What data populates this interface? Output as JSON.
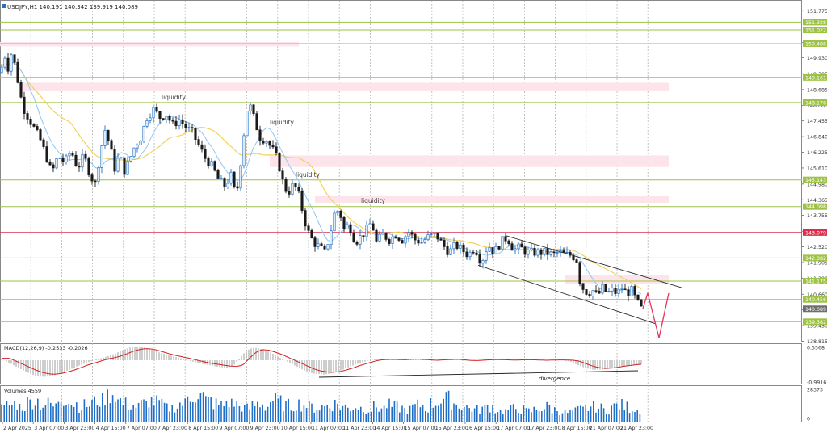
{
  "colors": {
    "bull": "#1f6fc7",
    "bear": "#1a1a1a",
    "level": "#9ec245",
    "red_level": "#d9304d",
    "zone": "#fde4ea",
    "ma_fast": "#8fc6f0",
    "ma_slow": "#f2d25c",
    "grid": "#b5b5b5",
    "macd_signal": "#d02020",
    "macd_hist": "#bdbdbd",
    "volume": "#1f6fc7",
    "forecast": "#e8335c",
    "channel": "#303030"
  },
  "chart_data": [
    {
      "type": "candlestick",
      "title": "USDJPY,H1  140.191 140.342 139.919 140.089",
      "ylim": [
        138.8,
        152.1
      ],
      "y_ticks": [
        "151.775",
        "150.525",
        "149.930",
        "149.305",
        "148.685",
        "148.060",
        "147.455",
        "146.840",
        "146.225",
        "145.610",
        "144.980",
        "144.365",
        "143.755",
        "143.135",
        "142.520",
        "141.905",
        "141.290",
        "140.660",
        "140.050",
        "139.430",
        "138.815"
      ],
      "level_labels": [
        {
          "label": "151.328",
          "color": "green",
          "value": 151.328
        },
        {
          "label": "151.022",
          "color": "green",
          "value": 151.022
        },
        {
          "label": "150.486",
          "color": "green",
          "value": 150.486
        },
        {
          "label": "149.161",
          "color": "green",
          "value": 149.161
        },
        {
          "label": "148.176",
          "color": "green",
          "value": 148.176
        },
        {
          "label": "145.143",
          "color": "green",
          "value": 145.143
        },
        {
          "label": "144.098",
          "color": "green",
          "value": 144.098
        },
        {
          "label": "143.079",
          "color": "red",
          "value": 143.079
        },
        {
          "label": "142.082",
          "color": "green",
          "value": 142.082
        },
        {
          "label": "141.175",
          "color": "green",
          "value": 141.175
        },
        {
          "label": "140.456",
          "color": "green",
          "value": 140.456
        },
        {
          "label": "140.089",
          "color": "gray",
          "value": 140.089
        },
        {
          "label": "139.582",
          "color": "green",
          "value": 139.582
        }
      ],
      "zones": [
        [
          150.55,
          150.38
        ],
        [
          148.95,
          148.62
        ],
        [
          146.1,
          145.65
        ],
        [
          144.5,
          144.25
        ],
        [
          141.4,
          141.05
        ]
      ],
      "x_ticks": [
        "2 Apr 2025",
        "3 Apr 07:00",
        "3 Apr 23:00",
        "4 Apr 15:00",
        "7 Apr 07:00",
        "7 Apr 23:00",
        "8 Apr 15:00",
        "9 Apr 07:00",
        "9 Apr 23:00",
        "10 Apr 15:00",
        "11 Apr 07:00",
        "11 Apr 23:00",
        "14 Apr 15:00",
        "15 Apr 07:00",
        "15 Apr 23:00",
        "16 Apr 15:00",
        "17 Apr 07:00",
        "17 Apr 23:00",
        "18 Apr 15:00",
        "21 Apr 07:00",
        "21 Apr 23:00"
      ],
      "annotations": [
        "liquidity",
        "liquidity",
        "liquidity",
        "liquidity"
      ],
      "close_path": [
        [
          0,
          149.35
        ],
        [
          6,
          150.0
        ],
        [
          10,
          149.55
        ],
        [
          14,
          150.08
        ],
        [
          20,
          149.5
        ],
        [
          24,
          148.6
        ],
        [
          30,
          147.9
        ],
        [
          40,
          147.3
        ],
        [
          50,
          146.7
        ],
        [
          58,
          146.0
        ],
        [
          64,
          145.4
        ],
        [
          72,
          146.1
        ],
        [
          80,
          145.8
        ],
        [
          88,
          146.3
        ],
        [
          96,
          145.6
        ],
        [
          104,
          146.1
        ],
        [
          112,
          145.3
        ],
        [
          118,
          145.0
        ],
        [
          124,
          146.2
        ],
        [
          130,
          147.1
        ],
        [
          136,
          146.5
        ],
        [
          142,
          145.6
        ],
        [
          148,
          146.1
        ],
        [
          154,
          145.5
        ],
        [
          160,
          145.9
        ],
        [
          166,
          146.4
        ],
        [
          174,
          146.8
        ],
        [
          182,
          147.6
        ],
        [
          190,
          147.9
        ],
        [
          198,
          147.6
        ],
        [
          206,
          147.7
        ],
        [
          214,
          147.3
        ],
        [
          222,
          147.5
        ],
        [
          230,
          147.2
        ],
        [
          238,
          147.0
        ],
        [
          246,
          146.5
        ],
        [
          254,
          146.0
        ],
        [
          262,
          145.7
        ],
        [
          270,
          145.2
        ],
        [
          278,
          144.9
        ],
        [
          286,
          145.3
        ],
        [
          292,
          144.5
        ],
        [
          296,
          145.2
        ],
        [
          300,
          146.5
        ],
        [
          306,
          147.9
        ],
        [
          310,
          148.0
        ],
        [
          316,
          147.4
        ],
        [
          322,
          146.8
        ],
        [
          330,
          146.7
        ],
        [
          338,
          146.3
        ],
        [
          344,
          145.9
        ],
        [
          350,
          145.1
        ],
        [
          356,
          144.6
        ],
        [
          362,
          144.9
        ],
        [
          368,
          144.8
        ],
        [
          374,
          144.0
        ],
        [
          380,
          143.2
        ],
        [
          388,
          142.7
        ],
        [
          396,
          142.5
        ],
        [
          402,
          142.3
        ],
        [
          408,
          142.9
        ],
        [
          414,
          143.8
        ],
        [
          420,
          144.0
        ],
        [
          426,
          143.2
        ],
        [
          432,
          143.4
        ],
        [
          440,
          142.7
        ],
        [
          446,
          142.9
        ],
        [
          452,
          143.1
        ],
        [
          460,
          143.5
        ],
        [
          466,
          142.7
        ],
        [
          474,
          143.0
        ],
        [
          482,
          142.8
        ],
        [
          490,
          143.0
        ],
        [
          498,
          142.8
        ],
        [
          506,
          143.1
        ],
        [
          514,
          142.8
        ],
        [
          522,
          142.7
        ],
        [
          530,
          142.9
        ],
        [
          540,
          143.0
        ],
        [
          548,
          142.6
        ],
        [
          556,
          142.3
        ],
        [
          564,
          142.6
        ],
        [
          572,
          142.4
        ],
        [
          580,
          142.2
        ],
        [
          588,
          142.5
        ],
        [
          596,
          141.9
        ],
        [
          604,
          142.6
        ],
        [
          612,
          142.3
        ],
        [
          620,
          142.7
        ],
        [
          628,
          142.9
        ],
        [
          636,
          142.4
        ],
        [
          644,
          142.5
        ],
        [
          652,
          142.3
        ],
        [
          660,
          142.3
        ],
        [
          668,
          142.3
        ],
        [
          676,
          142.3
        ],
        [
          684,
          142.2
        ],
        [
          692,
          142.3
        ],
        [
          700,
          142.2
        ],
        [
          708,
          142.2
        ],
        [
          714,
          142.0
        ],
        [
          718,
          141.2
        ],
        [
          722,
          140.9
        ],
        [
          728,
          140.7
        ],
        [
          734,
          140.8
        ],
        [
          740,
          140.6
        ],
        [
          746,
          140.9
        ],
        [
          752,
          140.7
        ],
        [
          758,
          140.8
        ],
        [
          764,
          140.7
        ],
        [
          770,
          140.9
        ],
        [
          776,
          140.7
        ],
        [
          782,
          140.8
        ],
        [
          788,
          140.4
        ],
        [
          794,
          140.09
        ]
      ],
      "volume_profile": [
        0.45,
        0.55,
        0.6,
        0.5,
        0.65,
        0.7,
        0.55,
        0.6,
        0.5,
        0.75,
        0.8,
        0.6,
        0.5,
        0.55,
        0.65,
        0.7,
        0.85,
        0.95,
        0.7,
        0.6,
        0.55,
        0.5,
        0.6,
        0.7,
        0.65,
        0.55,
        0.45,
        0.5,
        0.6,
        0.8,
        0.9,
        0.85,
        0.7,
        0.6,
        0.55,
        0.65,
        0.6,
        0.5,
        0.45,
        0.55,
        0.6,
        0.5,
        0.7,
        0.65,
        0.55,
        0.5,
        0.6,
        0.55,
        0.5,
        0.45,
        0.5,
        0.55,
        0.6,
        0.5,
        0.45,
        0.5,
        0.45,
        0.4,
        0.5,
        0.45,
        0.55,
        0.5,
        0.45,
        0.4,
        0.5,
        0.55,
        0.45,
        0.6,
        0.7,
        0.75,
        0.65,
        0.55,
        0.5,
        0.45,
        0.4,
        0.45,
        0.5,
        0.4,
        0.35,
        0.4,
        0.45,
        0.4,
        0.35,
        0.4,
        0.45,
        0.5,
        0.4,
        0.35,
        0.3,
        0.35,
        0.4,
        0.45,
        0.5,
        0.45,
        0.4,
        0.5,
        0.55,
        0.5,
        0.45,
        0.4
      ],
      "forecast_label": ""
    },
    {
      "type": "macd",
      "title": "MACD(12,26,9) -0.2533 -0.2026",
      "y_ticks": [
        "0.5568",
        "-0.9916"
      ],
      "annotation": "divergence",
      "hist_profile": [
        0.1,
        -0.05,
        -0.2,
        -0.35,
        -0.5,
        -0.62,
        -0.7,
        -0.72,
        -0.68,
        -0.6,
        -0.5,
        -0.38,
        -0.25,
        -0.15,
        -0.05,
        0.05,
        0.12,
        0.2,
        0.32,
        0.45,
        0.55,
        0.6,
        0.58,
        0.5,
        0.4,
        0.3,
        0.22,
        0.15,
        0.08,
        0.0,
        -0.08,
        -0.15,
        -0.2,
        -0.25,
        -0.3,
        -0.32,
        -0.25,
        0.1,
        0.4,
        0.55,
        0.52,
        0.42,
        0.3,
        0.15,
        0.0,
        -0.15,
        -0.3,
        -0.45,
        -0.55,
        -0.6,
        -0.62,
        -0.58,
        -0.5,
        -0.4,
        -0.28,
        -0.18,
        -0.08,
        0.0,
        0.04,
        0.05,
        0.04,
        0.03,
        0.05,
        0.06,
        0.04,
        0.02,
        0.0,
        0.02,
        0.04,
        0.05,
        0.03,
        0.0,
        -0.02,
        0.0,
        0.02,
        0.04,
        0.03,
        0.02,
        0.01,
        0.02,
        0.03,
        0.02,
        0.01,
        0.0,
        0.01,
        0.02,
        0.01,
        0.0,
        -0.05,
        -0.18,
        -0.3,
        -0.38,
        -0.42,
        -0.4,
        -0.36,
        -0.3,
        -0.26,
        -0.22,
        -0.2,
        -0.18
      ]
    },
    {
      "type": "bar",
      "title": "Volumes 4559",
      "y_ticks": [
        "28373",
        "0"
      ]
    }
  ]
}
